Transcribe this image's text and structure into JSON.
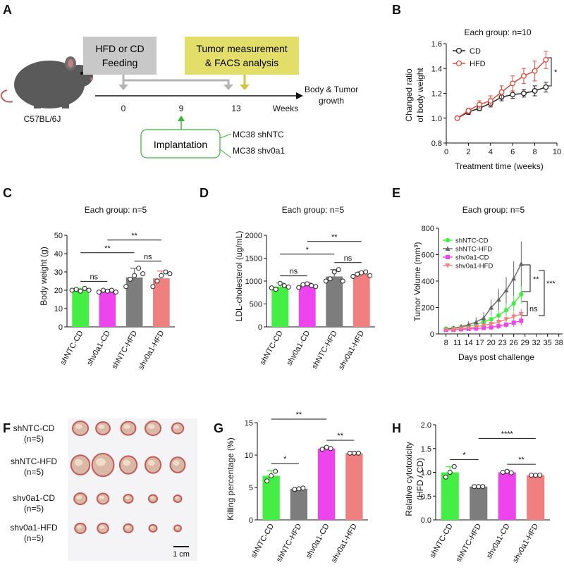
{
  "panel_labels": {
    "A": "A",
    "B": "B",
    "C": "C",
    "D": "D",
    "E": "E",
    "F": "F",
    "G": "G",
    "H": "H"
  },
  "colors": {
    "green": "#44ee44",
    "magenta": "#ee44ee",
    "gray": "#7d7d7d",
    "salmon": "#f08080",
    "red": "#e04a3a",
    "black": "#222222"
  },
  "panelA": {
    "feeding_line1": "HFD or CD",
    "feeding_line2": "Feeding",
    "tumor_line1": "Tumor measurement",
    "tumor_line2": "& FACS analysis",
    "mouse_label": "C57BL/6J",
    "ticks": [
      "0",
      "9",
      "13"
    ],
    "axis_unit": "Weeks",
    "outcome_line1": "Body & Tumor",
    "outcome_line2": "growth",
    "implantation": "Implantation",
    "cell_line1": "MC38 shNTC",
    "cell_line2": "MC38 shv0a1"
  },
  "chart_data": [
    {
      "panel": "B",
      "type": "line",
      "title": "Each group: n=10",
      "xlabel": "Treatment time (weeks)",
      "ylabel_line1": "Changed ratio",
      "ylabel_line2": "of body weight",
      "xlim": [
        0,
        10
      ],
      "ylim": [
        0.8,
        1.6
      ],
      "xticks": [
        0,
        2,
        4,
        6,
        8,
        10
      ],
      "yticks": [
        0.8,
        1.0,
        1.2,
        1.4,
        1.6
      ],
      "x": [
        1,
        2,
        3,
        4,
        5,
        6,
        7,
        8,
        9
      ],
      "series": [
        {
          "name": "CD",
          "values": [
            1.0,
            1.05,
            1.08,
            1.12,
            1.17,
            1.19,
            1.2,
            1.22,
            1.25
          ],
          "errors": [
            0,
            0.02,
            0.02,
            0.03,
            0.03,
            0.03,
            0.03,
            0.04,
            0.04
          ]
        },
        {
          "name": "HFD",
          "values": [
            1.0,
            1.06,
            1.11,
            1.14,
            1.21,
            1.28,
            1.34,
            1.38,
            1.47
          ],
          "errors": [
            0,
            0.02,
            0.03,
            0.04,
            0.05,
            0.06,
            0.06,
            0.08,
            0.07
          ]
        }
      ],
      "annotations": [
        "*"
      ]
    },
    {
      "panel": "C",
      "type": "bar",
      "title": "Each group: n=5",
      "ylabel": "Body weight (g)",
      "ylim": [
        0,
        50
      ],
      "yticks": [
        0,
        10,
        20,
        30,
        40,
        50
      ],
      "categories": [
        "shNTC-CD",
        "shv0a1-CD",
        "shNTC-HFD",
        "shv0a1-HFD"
      ],
      "values": [
        20,
        19.5,
        27,
        26.5
      ],
      "errors": [
        1,
        1,
        5,
        4
      ],
      "points": [
        [
          20,
          20.5,
          19.5,
          21,
          20
        ],
        [
          19,
          20,
          19.5,
          20,
          19
        ],
        [
          22,
          26,
          28,
          32,
          29
        ],
        [
          22,
          25,
          28,
          30,
          29
        ]
      ],
      "comparisons": [
        {
          "from": 0,
          "to": 1,
          "label": "ns"
        },
        {
          "from": 2,
          "to": 3,
          "label": "ns"
        },
        {
          "from": 0,
          "to": 2,
          "label": "**"
        },
        {
          "from": 1,
          "to": 3,
          "label": "**"
        }
      ]
    },
    {
      "panel": "D",
      "type": "bar",
      "title": "Each group: n=5",
      "ylabel": "LDL-cholesterol (ug/mL)",
      "ylim": [
        0,
        2000
      ],
      "yticks": [
        0,
        500,
        1000,
        1500,
        2000
      ],
      "categories": [
        "shNTC-CD",
        "shv0a1-CD",
        "shNTC-HFD",
        "shv0a1-HFD"
      ],
      "values": [
        880,
        900,
        1100,
        1150
      ],
      "errors": [
        80,
        60,
        150,
        60
      ],
      "points": [
        [
          850,
          820,
          950,
          900,
          870
        ],
        [
          860,
          920,
          940,
          900,
          880
        ],
        [
          1000,
          1050,
          1200,
          1250,
          1000
        ],
        [
          1100,
          1150,
          1180,
          1200,
          1120
        ]
      ],
      "comparisons": [
        {
          "from": 0,
          "to": 1,
          "label": "ns"
        },
        {
          "from": 2,
          "to": 3,
          "label": "ns"
        },
        {
          "from": 0,
          "to": 2,
          "label": "*"
        },
        {
          "from": 1,
          "to": 3,
          "label": "**"
        }
      ]
    },
    {
      "panel": "E",
      "type": "line",
      "title": "Each group: n=5",
      "xlabel": "Days post challenge",
      "ylabel": "Tumor Volume (mm³)",
      "xlim": [
        6,
        39
      ],
      "ylim": [
        0,
        800
      ],
      "xticks": [
        8,
        11,
        14,
        17,
        20,
        23,
        26,
        29,
        32,
        35,
        38
      ],
      "yticks": [
        0,
        200,
        400,
        600,
        800
      ],
      "x": [
        8,
        10,
        12,
        14,
        16,
        18,
        20,
        22,
        24,
        26,
        28
      ],
      "series": [
        {
          "name": "shNTC-CD",
          "color": "#44ee44",
          "marker": "circle",
          "values": [
            40,
            45,
            50,
            60,
            70,
            90,
            110,
            140,
            180,
            230,
            300
          ],
          "errors": [
            10,
            10,
            12,
            15,
            20,
            25,
            30,
            40,
            50,
            60,
            70
          ]
        },
        {
          "name": "shNTC-HFD",
          "color": "#666666",
          "marker": "triangle",
          "values": [
            35,
            42,
            55,
            70,
            90,
            120,
            200,
            260,
            330,
            420,
            530
          ],
          "errors": [
            10,
            15,
            20,
            25,
            35,
            45,
            60,
            80,
            100,
            130,
            170
          ]
        },
        {
          "name": "shv0a1-CD",
          "color": "#ee44ee",
          "marker": "square",
          "values": [
            30,
            32,
            35,
            38,
            40,
            45,
            50,
            60,
            70,
            85,
            100
          ],
          "errors": [
            5,
            6,
            8,
            10,
            12,
            15,
            18,
            22,
            25,
            30,
            35
          ]
        },
        {
          "name": "shv0a1-HFD",
          "color": "#f08080",
          "marker": "triangle-down",
          "values": [
            30,
            35,
            40,
            45,
            55,
            65,
            75,
            90,
            110,
            130,
            150
          ],
          "errors": [
            5,
            6,
            8,
            10,
            12,
            15,
            20,
            25,
            30,
            35,
            40
          ]
        }
      ],
      "annotations": [
        "**",
        "ns",
        "***"
      ]
    },
    {
      "panel": "G",
      "type": "bar",
      "ylabel": "Killing percentage (%)",
      "ylim": [
        0,
        15
      ],
      "yticks": [
        0,
        5,
        10,
        15
      ],
      "categories": [
        "shNTC-CD",
        "shNTC-HFD",
        "shv0a1-CD",
        "shv0a1-HFD"
      ],
      "values": [
        6.8,
        4.8,
        11.0,
        10.3
      ],
      "errors": [
        0.8,
        0.1,
        0.2,
        0.1
      ],
      "points": [
        [
          6.0,
          6.8,
          7.5
        ],
        [
          4.7,
          4.8,
          4.9
        ],
        [
          10.9,
          11.2,
          11.0
        ],
        [
          10.3,
          10.3,
          10.3
        ]
      ],
      "comparisons": [
        {
          "from": 0,
          "to": 1,
          "label": "*"
        },
        {
          "from": 2,
          "to": 3,
          "label": "**"
        },
        {
          "from": 0,
          "to": 2,
          "label": "**"
        }
      ]
    },
    {
      "panel": "H",
      "type": "bar",
      "ylabel_line1": "Relative cytotoxicity",
      "ylabel_line2": "(HFD / CD)",
      "ylim": [
        0,
        2.0
      ],
      "yticks": [
        0.0,
        0.5,
        1.0,
        1.5,
        2.0
      ],
      "categories": [
        "shNTC-CD",
        "shNTC-HFD",
        "shv0a1-CD",
        "shv0a1-HFD"
      ],
      "values": [
        1.0,
        0.7,
        1.0,
        0.94
      ],
      "errors": [
        0.12,
        0.01,
        0.02,
        0.01
      ],
      "points": [
        [
          0.9,
          1.0,
          1.12
        ],
        [
          0.7,
          0.7,
          0.7
        ],
        [
          1.0,
          1.02,
          0.99
        ],
        [
          0.94,
          0.94,
          0.94
        ]
      ],
      "comparisons": [
        {
          "from": 0,
          "to": 1,
          "label": "*"
        },
        {
          "from": 2,
          "to": 3,
          "label": "**"
        },
        {
          "from": 1,
          "to": 3,
          "label": "****"
        }
      ]
    }
  ],
  "panelF": {
    "rows": [
      {
        "line1": "shNTC-CD",
        "line2": "(n=5)"
      },
      {
        "line1": "shNTC-HFD",
        "line2": "(n=5)"
      },
      {
        "line1": "shv0a1-CD",
        "line2": "(n=5)"
      },
      {
        "line1": "shv0a1-HFD",
        "line2": "(n=5)"
      }
    ],
    "tumor_sizes": [
      [
        1.0,
        0.9,
        0.95,
        1.0,
        0.75
      ],
      [
        1.2,
        1.4,
        1.1,
        1.0,
        0.95
      ],
      [
        0.8,
        0.75,
        0.6,
        0.55,
        0.5
      ],
      [
        0.7,
        0.7,
        0.6,
        0.5,
        0.45
      ]
    ],
    "scale_bar": "1 cm"
  }
}
